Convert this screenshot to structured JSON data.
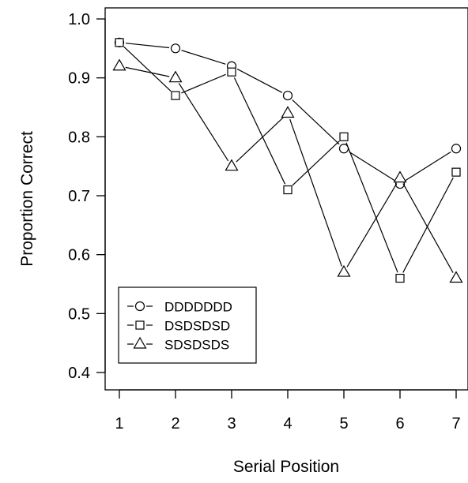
{
  "chart_data": {
    "type": "line",
    "title": "",
    "xlabel": "Serial Position",
    "ylabel": "Proportion Correct",
    "x": [
      1,
      2,
      3,
      4,
      5,
      6,
      7
    ],
    "xlim": [
      1,
      7
    ],
    "ylim": [
      0.4,
      1.0
    ],
    "yticks": [
      "0.4",
      "0.5",
      "0.6",
      "0.7",
      "0.8",
      "0.9",
      "1.0"
    ],
    "xticks": [
      "1",
      "2",
      "3",
      "4",
      "5",
      "6",
      "7"
    ],
    "grid": false,
    "legend_position": "bottom-left",
    "series": [
      {
        "name": "DDDDDDD",
        "marker": "circle",
        "values": [
          0.96,
          0.95,
          0.92,
          0.87,
          0.78,
          0.72,
          0.78
        ]
      },
      {
        "name": "DSDSDSD",
        "marker": "square",
        "values": [
          0.96,
          0.87,
          0.91,
          0.71,
          0.8,
          0.56,
          0.74
        ]
      },
      {
        "name": "SDSDSDS",
        "marker": "triangle",
        "values": [
          0.92,
          0.9,
          0.75,
          0.84,
          0.57,
          0.73,
          0.56
        ]
      }
    ]
  }
}
